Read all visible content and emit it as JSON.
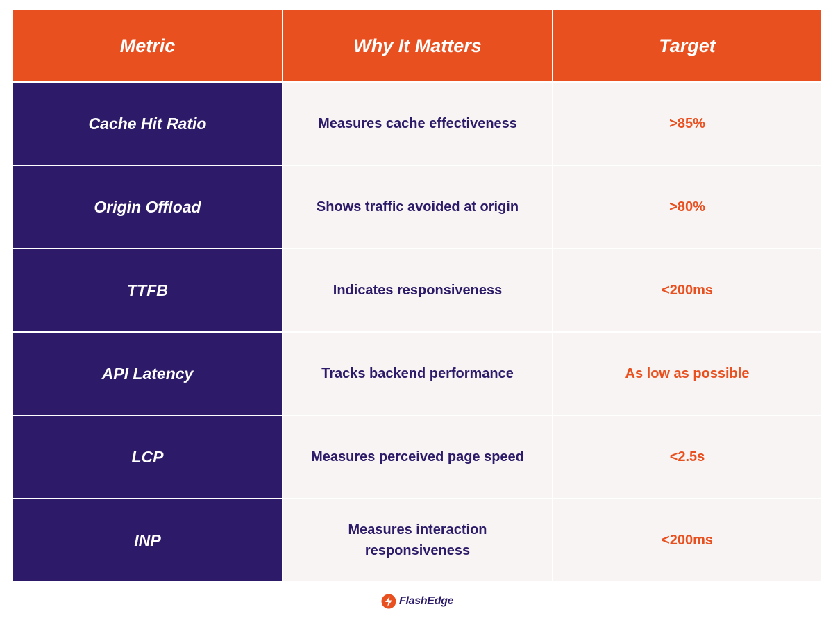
{
  "header": {
    "metric": "Metric",
    "why": "Why It Matters",
    "target": "Target"
  },
  "rows": [
    {
      "metric": "Cache Hit Ratio",
      "why": "Measures cache effectiveness",
      "target": ">85%"
    },
    {
      "metric": "Origin Offload",
      "why": "Shows traffic avoided at origin",
      "target": ">80%"
    },
    {
      "metric": "TTFB",
      "why": "Indicates responsiveness",
      "target": "<200ms"
    },
    {
      "metric": "API Latency",
      "why": "Tracks backend performance",
      "target": "As low as possible"
    },
    {
      "metric": "LCP",
      "why": "Measures perceived page speed",
      "target": "<2.5s"
    },
    {
      "metric": "INP",
      "why": "Measures interaction responsiveness",
      "target": "<200ms"
    }
  ],
  "brand": {
    "name": "FlashEdge",
    "icon": "lightning-bolt-icon",
    "accent": "#e9501f",
    "primary": "#2d1b69"
  }
}
